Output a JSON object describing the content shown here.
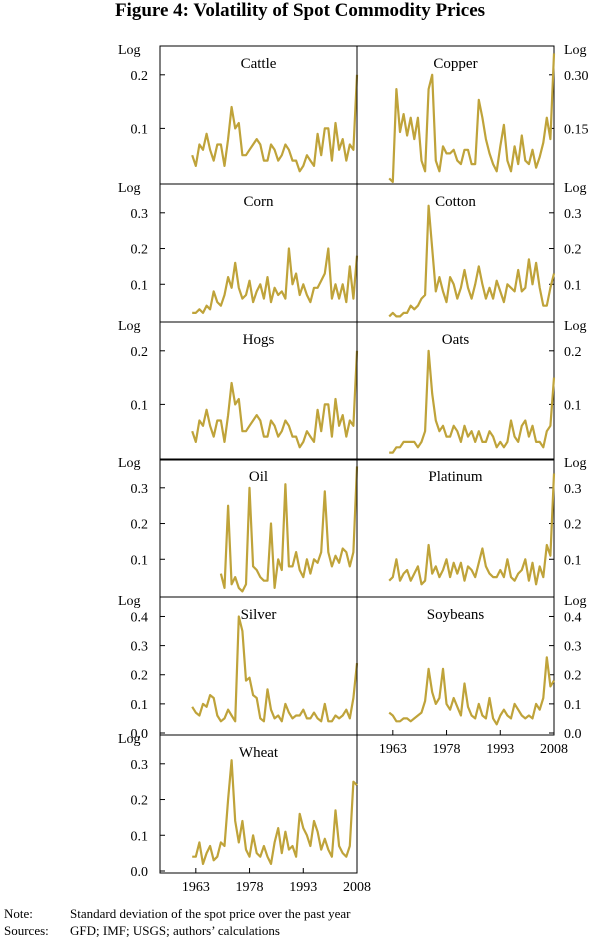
{
  "title": "Figure 4: Volatility of Spot Commodity Prices",
  "notes": [
    {
      "key": "Note:",
      "text": "Standard deviation of the spot price over the past year"
    },
    {
      "key": "Sources:",
      "text": "GFD; IMF; USGS; authors’ calculations"
    }
  ],
  "colors": {
    "line": "#bfa33a",
    "axis": "#000000"
  },
  "chart_data": [
    {
      "type": "line",
      "title": "Cattle",
      "axis_unit": "Log",
      "xlim": [
        1953,
        2008
      ],
      "ylim": [
        0,
        0.25
      ],
      "yticks": [
        0.1,
        0.2
      ],
      "ytick_labels": [
        "0.1",
        "0.2"
      ],
      "xticks": [],
      "xtick_labels": [],
      "x": [
        1962,
        1963,
        1964,
        1965,
        1966,
        1967,
        1968,
        1969,
        1970,
        1971,
        1972,
        1973,
        1974,
        1975,
        1976,
        1977,
        1978,
        1979,
        1980,
        1981,
        1982,
        1983,
        1984,
        1985,
        1986,
        1987,
        1988,
        1989,
        1990,
        1991,
        1992,
        1993,
        1994,
        1995,
        1996,
        1997,
        1998,
        1999,
        2000,
        2001,
        2002,
        2003,
        2004,
        2005,
        2006,
        2007,
        2008
      ],
      "y": [
        0.05,
        0.03,
        0.07,
        0.06,
        0.09,
        0.06,
        0.04,
        0.07,
        0.07,
        0.03,
        0.08,
        0.14,
        0.1,
        0.11,
        0.05,
        0.05,
        0.06,
        0.07,
        0.08,
        0.07,
        0.04,
        0.04,
        0.07,
        0.06,
        0.04,
        0.05,
        0.07,
        0.06,
        0.04,
        0.04,
        0.02,
        0.03,
        0.05,
        0.04,
        0.03,
        0.09,
        0.05,
        0.1,
        0.1,
        0.04,
        0.11,
        0.06,
        0.08,
        0.04,
        0.07,
        0.06,
        0.2
      ]
    },
    {
      "type": "line",
      "title": "Copper",
      "axis_unit": "Log",
      "xlim": [
        1953,
        2008
      ],
      "ylim": [
        0,
        0.375
      ],
      "yticks": [
        0.15,
        0.3
      ],
      "ytick_labels": [
        "0.15",
        "0.30"
      ],
      "xticks": [],
      "xtick_labels": [],
      "x": [
        1962,
        1963,
        1964,
        1965,
        1966,
        1967,
        1968,
        1969,
        1970,
        1971,
        1972,
        1973,
        1974,
        1975,
        1976,
        1977,
        1978,
        1979,
        1980,
        1981,
        1982,
        1983,
        1984,
        1985,
        1986,
        1987,
        1988,
        1989,
        1990,
        1991,
        1992,
        1993,
        1994,
        1995,
        1996,
        1997,
        1998,
        1999,
        2000,
        2001,
        2002,
        2003,
        2004,
        2005,
        2006,
        2007,
        2008
      ],
      "y": [
        0.01,
        0.0,
        0.26,
        0.14,
        0.19,
        0.13,
        0.18,
        0.12,
        0.18,
        0.06,
        0.03,
        0.26,
        0.3,
        0.06,
        0.03,
        0.1,
        0.08,
        0.08,
        0.09,
        0.06,
        0.05,
        0.09,
        0.09,
        0.05,
        0.05,
        0.23,
        0.18,
        0.12,
        0.08,
        0.05,
        0.03,
        0.1,
        0.16,
        0.06,
        0.03,
        0.1,
        0.05,
        0.13,
        0.06,
        0.05,
        0.09,
        0.04,
        0.07,
        0.11,
        0.18,
        0.12,
        0.36
      ]
    },
    {
      "type": "line",
      "title": "Corn",
      "axis_unit": "Log",
      "xlim": [
        1953,
        2008
      ],
      "ylim": [
        0,
        0.375
      ],
      "yticks": [
        0.1,
        0.2,
        0.3
      ],
      "ytick_labels": [
        "0.1",
        "0.2",
        "0.3"
      ],
      "xticks": [],
      "xtick_labels": [],
      "x": [
        1962,
        1963,
        1964,
        1965,
        1966,
        1967,
        1968,
        1969,
        1970,
        1971,
        1972,
        1973,
        1974,
        1975,
        1976,
        1977,
        1978,
        1979,
        1980,
        1981,
        1982,
        1983,
        1984,
        1985,
        1986,
        1987,
        1988,
        1989,
        1990,
        1991,
        1992,
        1993,
        1994,
        1995,
        1996,
        1997,
        1998,
        1999,
        2000,
        2001,
        2002,
        2003,
        2004,
        2005,
        2006,
        2007,
        2008
      ],
      "y": [
        0.02,
        0.02,
        0.03,
        0.02,
        0.04,
        0.03,
        0.08,
        0.05,
        0.04,
        0.07,
        0.12,
        0.09,
        0.16,
        0.09,
        0.06,
        0.07,
        0.11,
        0.05,
        0.08,
        0.1,
        0.06,
        0.12,
        0.05,
        0.09,
        0.07,
        0.08,
        0.06,
        0.2,
        0.1,
        0.13,
        0.07,
        0.1,
        0.07,
        0.05,
        0.09,
        0.09,
        0.11,
        0.13,
        0.2,
        0.06,
        0.1,
        0.06,
        0.1,
        0.05,
        0.15,
        0.06,
        0.18
      ]
    },
    {
      "type": "line",
      "title": "Cotton",
      "axis_unit": "Log",
      "xlim": [
        1953,
        2008
      ],
      "ylim": [
        0,
        0.375
      ],
      "yticks": [
        0.1,
        0.2,
        0.3
      ],
      "ytick_labels": [
        "0.1",
        "0.2",
        "0.3"
      ],
      "xticks": [],
      "xtick_labels": [],
      "x": [
        1962,
        1963,
        1964,
        1965,
        1966,
        1967,
        1968,
        1969,
        1970,
        1971,
        1972,
        1973,
        1974,
        1975,
        1976,
        1977,
        1978,
        1979,
        1980,
        1981,
        1982,
        1983,
        1984,
        1985,
        1986,
        1987,
        1988,
        1989,
        1990,
        1991,
        1992,
        1993,
        1994,
        1995,
        1996,
        1997,
        1998,
        1999,
        2000,
        2001,
        2002,
        2003,
        2004,
        2005,
        2006,
        2007,
        2008
      ],
      "y": [
        0.01,
        0.02,
        0.01,
        0.01,
        0.02,
        0.02,
        0.04,
        0.03,
        0.04,
        0.06,
        0.07,
        0.32,
        0.2,
        0.08,
        0.12,
        0.08,
        0.05,
        0.12,
        0.1,
        0.06,
        0.09,
        0.14,
        0.09,
        0.06,
        0.1,
        0.15,
        0.1,
        0.06,
        0.09,
        0.06,
        0.11,
        0.08,
        0.05,
        0.1,
        0.09,
        0.08,
        0.14,
        0.08,
        0.09,
        0.17,
        0.1,
        0.16,
        0.09,
        0.04,
        0.04,
        0.09,
        0.13
      ]
    },
    {
      "type": "line",
      "title": "Hogs",
      "axis_unit": "Log",
      "xlim": [
        1953,
        2008
      ],
      "ylim": [
        0,
        0.25
      ],
      "yticks": [
        0.1,
        0.2
      ],
      "ytick_labels": [
        "0.1",
        "0.2"
      ],
      "xticks": [],
      "xtick_labels": [],
      "x": [
        1962,
        1963,
        1964,
        1965,
        1966,
        1967,
        1968,
        1969,
        1970,
        1971,
        1972,
        1973,
        1974,
        1975,
        1976,
        1977,
        1978,
        1979,
        1980,
        1981,
        1982,
        1983,
        1984,
        1985,
        1986,
        1987,
        1988,
        1989,
        1990,
        1991,
        1992,
        1993,
        1994,
        1995,
        1996,
        1997,
        1998,
        1999,
        2000,
        2001,
        2002,
        2003,
        2004,
        2005,
        2006,
        2007,
        2008
      ],
      "y": [
        0.05,
        0.03,
        0.07,
        0.06,
        0.09,
        0.06,
        0.04,
        0.07,
        0.07,
        0.03,
        0.08,
        0.14,
        0.1,
        0.11,
        0.05,
        0.05,
        0.06,
        0.07,
        0.08,
        0.07,
        0.04,
        0.04,
        0.07,
        0.06,
        0.04,
        0.05,
        0.07,
        0.06,
        0.04,
        0.04,
        0.02,
        0.03,
        0.05,
        0.04,
        0.03,
        0.09,
        0.05,
        0.1,
        0.1,
        0.04,
        0.11,
        0.06,
        0.08,
        0.04,
        0.07,
        0.06,
        0.2
      ]
    },
    {
      "type": "line",
      "title": "Oats",
      "axis_unit": "Log",
      "xlim": [
        1953,
        2008
      ],
      "ylim": [
        0,
        0.25
      ],
      "yticks": [
        0.1,
        0.2
      ],
      "ytick_labels": [
        "0.1",
        "0.2"
      ],
      "xticks": [],
      "xtick_labels": [],
      "x": [
        1962,
        1963,
        1964,
        1965,
        1966,
        1967,
        1968,
        1969,
        1970,
        1971,
        1972,
        1973,
        1974,
        1975,
        1976,
        1977,
        1978,
        1979,
        1980,
        1981,
        1982,
        1983,
        1984,
        1985,
        1986,
        1987,
        1988,
        1989,
        1990,
        1991,
        1992,
        1993,
        1994,
        1995,
        1996,
        1997,
        1998,
        1999,
        2000,
        2001,
        2002,
        2003,
        2004,
        2005,
        2006,
        2007,
        2008
      ],
      "y": [
        0.01,
        0.01,
        0.02,
        0.02,
        0.03,
        0.03,
        0.03,
        0.03,
        0.02,
        0.03,
        0.05,
        0.2,
        0.12,
        0.07,
        0.05,
        0.06,
        0.04,
        0.04,
        0.06,
        0.05,
        0.03,
        0.06,
        0.04,
        0.05,
        0.03,
        0.05,
        0.03,
        0.03,
        0.05,
        0.04,
        0.02,
        0.03,
        0.02,
        0.03,
        0.07,
        0.04,
        0.03,
        0.06,
        0.07,
        0.04,
        0.06,
        0.03,
        0.03,
        0.02,
        0.05,
        0.06,
        0.15
      ]
    },
    {
      "type": "line",
      "title": "Oil",
      "axis_unit": "Log",
      "xlim": [
        1953,
        2008
      ],
      "ylim": [
        0,
        0.375
      ],
      "yticks": [
        0.1,
        0.2,
        0.3
      ],
      "ytick_labels": [
        "0.1",
        "0.2",
        "0.3"
      ],
      "xticks": [],
      "xtick_labels": [],
      "x": [
        1970,
        1971,
        1972,
        1973,
        1974,
        1975,
        1976,
        1977,
        1978,
        1979,
        1980,
        1981,
        1982,
        1983,
        1984,
        1985,
        1986,
        1987,
        1988,
        1989,
        1990,
        1991,
        1992,
        1993,
        1994,
        1995,
        1996,
        1997,
        1998,
        1999,
        2000,
        2001,
        2002,
        2003,
        2004,
        2005,
        2006,
        2007,
        2008
      ],
      "y": [
        0.06,
        0.02,
        0.25,
        0.03,
        0.05,
        0.02,
        0.01,
        0.03,
        0.3,
        0.08,
        0.07,
        0.05,
        0.04,
        0.04,
        0.2,
        0.02,
        0.1,
        0.07,
        0.31,
        0.08,
        0.08,
        0.12,
        0.07,
        0.05,
        0.1,
        0.06,
        0.1,
        0.09,
        0.12,
        0.29,
        0.12,
        0.08,
        0.11,
        0.09,
        0.13,
        0.12,
        0.08,
        0.12,
        0.36
      ]
    },
    {
      "type": "line",
      "title": "Platinum",
      "axis_unit": "Log",
      "xlim": [
        1953,
        2008
      ],
      "ylim": [
        0,
        0.375
      ],
      "yticks": [
        0.1,
        0.2,
        0.3
      ],
      "ytick_labels": [
        "0.1",
        "0.2",
        "0.3"
      ],
      "xticks": [],
      "xtick_labels": [],
      "x": [
        1962,
        1963,
        1964,
        1965,
        1966,
        1967,
        1968,
        1969,
        1970,
        1971,
        1972,
        1973,
        1974,
        1975,
        1976,
        1977,
        1978,
        1979,
        1980,
        1981,
        1982,
        1983,
        1984,
        1985,
        1986,
        1987,
        1988,
        1989,
        1990,
        1991,
        1992,
        1993,
        1994,
        1995,
        1996,
        1997,
        1998,
        1999,
        2000,
        2001,
        2002,
        2003,
        2004,
        2005,
        2006,
        2007,
        2008
      ],
      "y": [
        0.04,
        0.05,
        0.1,
        0.04,
        0.06,
        0.07,
        0.04,
        0.06,
        0.08,
        0.03,
        0.04,
        0.14,
        0.06,
        0.08,
        0.05,
        0.07,
        0.1,
        0.05,
        0.09,
        0.06,
        0.09,
        0.04,
        0.08,
        0.07,
        0.05,
        0.09,
        0.13,
        0.08,
        0.06,
        0.05,
        0.05,
        0.07,
        0.05,
        0.1,
        0.05,
        0.04,
        0.06,
        0.07,
        0.1,
        0.04,
        0.09,
        0.03,
        0.08,
        0.05,
        0.14,
        0.11,
        0.34
      ]
    },
    {
      "type": "line",
      "title": "Silver",
      "axis_unit": "Log",
      "xlim": [
        1953,
        2008
      ],
      "ylim": [
        0,
        0.46
      ],
      "yticks": [
        0.0,
        0.1,
        0.2,
        0.3,
        0.4
      ],
      "ytick_labels": [
        "0.0",
        "0.1",
        "0.2",
        "0.3",
        "0.4"
      ],
      "xticks": [],
      "xtick_labels": [],
      "x": [
        1962,
        1963,
        1964,
        1965,
        1966,
        1967,
        1968,
        1969,
        1970,
        1971,
        1972,
        1973,
        1974,
        1975,
        1976,
        1977,
        1978,
        1979,
        1980,
        1981,
        1982,
        1983,
        1984,
        1985,
        1986,
        1987,
        1988,
        1989,
        1990,
        1991,
        1992,
        1993,
        1994,
        1995,
        1996,
        1997,
        1998,
        1999,
        2000,
        2001,
        2002,
        2003,
        2004,
        2005,
        2006,
        2007,
        2008
      ],
      "y": [
        0.09,
        0.07,
        0.06,
        0.1,
        0.09,
        0.13,
        0.12,
        0.06,
        0.04,
        0.05,
        0.08,
        0.06,
        0.04,
        0.4,
        0.35,
        0.18,
        0.19,
        0.13,
        0.12,
        0.05,
        0.04,
        0.15,
        0.08,
        0.05,
        0.06,
        0.04,
        0.1,
        0.07,
        0.05,
        0.06,
        0.06,
        0.08,
        0.05,
        0.05,
        0.07,
        0.05,
        0.04,
        0.1,
        0.04,
        0.04,
        0.06,
        0.05,
        0.06,
        0.08,
        0.05,
        0.12,
        0.24
      ]
    },
    {
      "type": "line",
      "title": "Soybeans",
      "axis_unit": "Log",
      "xlim": [
        1953,
        2008
      ],
      "ylim": [
        0,
        0.46
      ],
      "yticks": [
        0.0,
        0.1,
        0.2,
        0.3,
        0.4
      ],
      "ytick_labels": [
        "0.0",
        "0.1",
        "0.2",
        "0.3",
        "0.4"
      ],
      "xticks": [
        1963,
        1978,
        1993,
        2008
      ],
      "xtick_labels": [
        "1963",
        "1978",
        "1993",
        "2008"
      ],
      "x": [
        1962,
        1963,
        1964,
        1965,
        1966,
        1967,
        1968,
        1969,
        1970,
        1971,
        1972,
        1973,
        1974,
        1975,
        1976,
        1977,
        1978,
        1979,
        1980,
        1981,
        1982,
        1983,
        1984,
        1985,
        1986,
        1987,
        1988,
        1989,
        1990,
        1991,
        1992,
        1993,
        1994,
        1995,
        1996,
        1997,
        1998,
        1999,
        2000,
        2001,
        2002,
        2003,
        2004,
        2005,
        2006,
        2007,
        2008
      ],
      "y": [
        0.07,
        0.06,
        0.04,
        0.04,
        0.05,
        0.05,
        0.04,
        0.05,
        0.06,
        0.07,
        0.11,
        0.22,
        0.14,
        0.1,
        0.12,
        0.22,
        0.1,
        0.08,
        0.12,
        0.09,
        0.06,
        0.17,
        0.09,
        0.06,
        0.05,
        0.1,
        0.06,
        0.05,
        0.12,
        0.05,
        0.03,
        0.06,
        0.08,
        0.06,
        0.05,
        0.1,
        0.08,
        0.06,
        0.05,
        0.06,
        0.05,
        0.1,
        0.08,
        0.12,
        0.26,
        0.16,
        0.18
      ]
    },
    {
      "type": "line",
      "title": "Wheat",
      "axis_unit": "Log",
      "xlim": [
        1953,
        2008
      ],
      "ylim": [
        0,
        0.375
      ],
      "yticks": [
        0.0,
        0.1,
        0.2,
        0.3
      ],
      "ytick_labels": [
        "0.0",
        "0.1",
        "0.2",
        "0.3"
      ],
      "xticks": [
        1963,
        1978,
        1993,
        2008
      ],
      "xtick_labels": [
        "1963",
        "1978",
        "1993",
        "2008"
      ],
      "x": [
        1962,
        1963,
        1964,
        1965,
        1966,
        1967,
        1968,
        1969,
        1970,
        1971,
        1972,
        1973,
        1974,
        1975,
        1976,
        1977,
        1978,
        1979,
        1980,
        1981,
        1982,
        1983,
        1984,
        1985,
        1986,
        1987,
        1988,
        1989,
        1990,
        1991,
        1992,
        1993,
        1994,
        1995,
        1996,
        1997,
        1998,
        1999,
        2000,
        2001,
        2002,
        2003,
        2004,
        2005,
        2006,
        2007,
        2008
      ],
      "y": [
        0.04,
        0.04,
        0.08,
        0.02,
        0.05,
        0.07,
        0.03,
        0.04,
        0.08,
        0.07,
        0.2,
        0.31,
        0.14,
        0.08,
        0.14,
        0.06,
        0.04,
        0.1,
        0.05,
        0.04,
        0.07,
        0.04,
        0.02,
        0.08,
        0.12,
        0.05,
        0.11,
        0.06,
        0.07,
        0.04,
        0.16,
        0.12,
        0.1,
        0.07,
        0.14,
        0.11,
        0.06,
        0.09,
        0.06,
        0.04,
        0.17,
        0.07,
        0.05,
        0.04,
        0.07,
        0.25,
        0.24
      ]
    }
  ]
}
